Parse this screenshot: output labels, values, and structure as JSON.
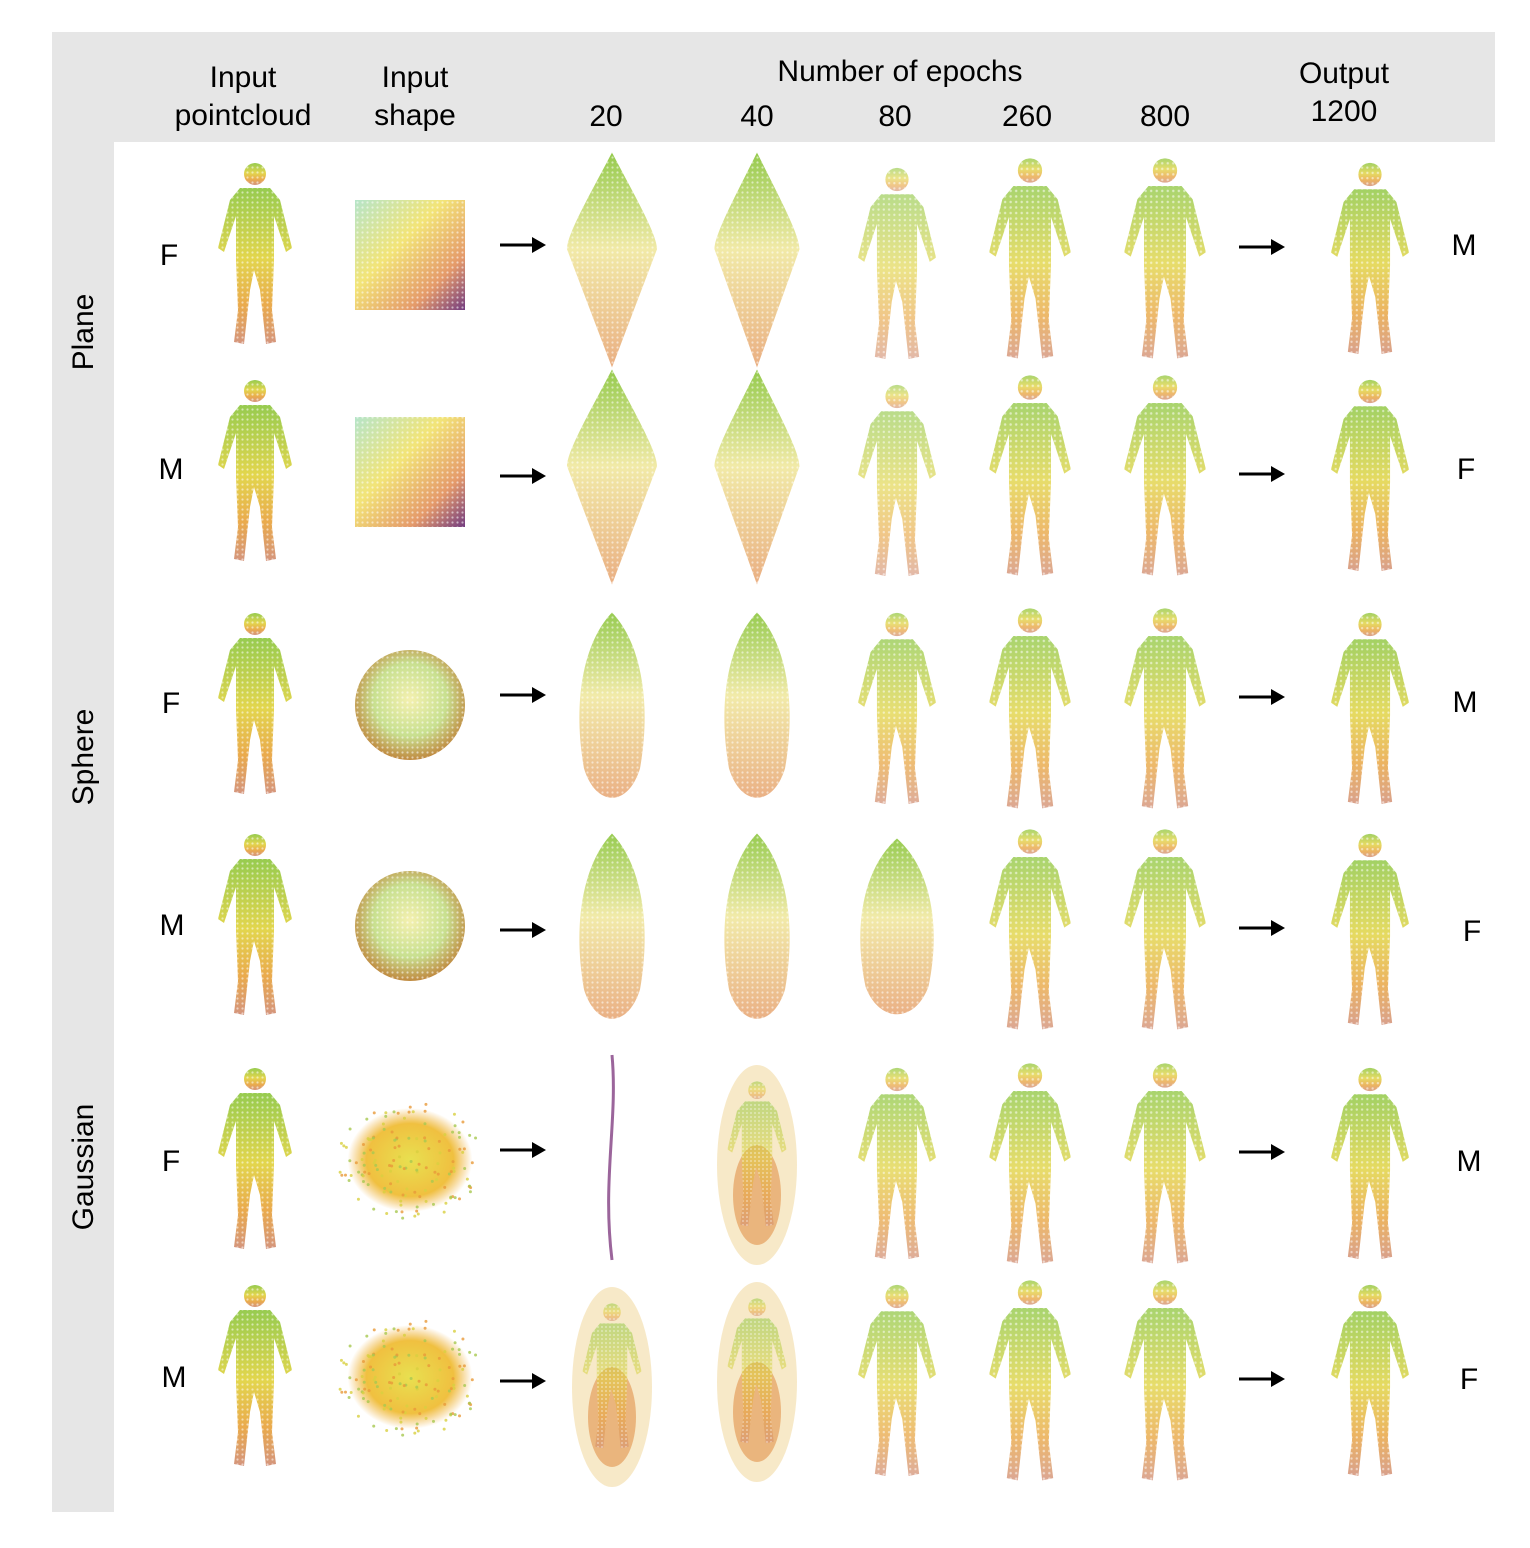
{
  "header": {
    "col_input_pointcloud": [
      "Input",
      "pointcloud"
    ],
    "col_input_shape": [
      "Input",
      "shape"
    ],
    "epochs_title": "Number of epochs",
    "epoch_labels": [
      "20",
      "40",
      "80",
      "260",
      "800"
    ],
    "output_title": "Output",
    "output_epoch": "1200"
  },
  "groups": [
    "Plane",
    "Sphere",
    "Gaussian"
  ],
  "rows": [
    {
      "input_gender": "F",
      "output_gender": "M",
      "input_shape": "plane"
    },
    {
      "input_gender": "M",
      "output_gender": "F",
      "input_shape": "plane"
    },
    {
      "input_gender": "F",
      "output_gender": "M",
      "input_shape": "sphere"
    },
    {
      "input_gender": "M",
      "output_gender": "F",
      "input_shape": "sphere"
    },
    {
      "input_gender": "F",
      "output_gender": "M",
      "input_shape": "gaussian"
    },
    {
      "input_gender": "M",
      "output_gender": "F",
      "input_shape": "gaussian"
    }
  ],
  "colors": {
    "band": "#e6e6e6",
    "gradient_top": "#8cc63e",
    "gradient_mid": "#e8d23a",
    "gradient_low": "#e89a3a",
    "gradient_bottom": "#c8705a",
    "gradient_edge": "#8a7a9a",
    "plane_dark": "#6a1a6a"
  }
}
